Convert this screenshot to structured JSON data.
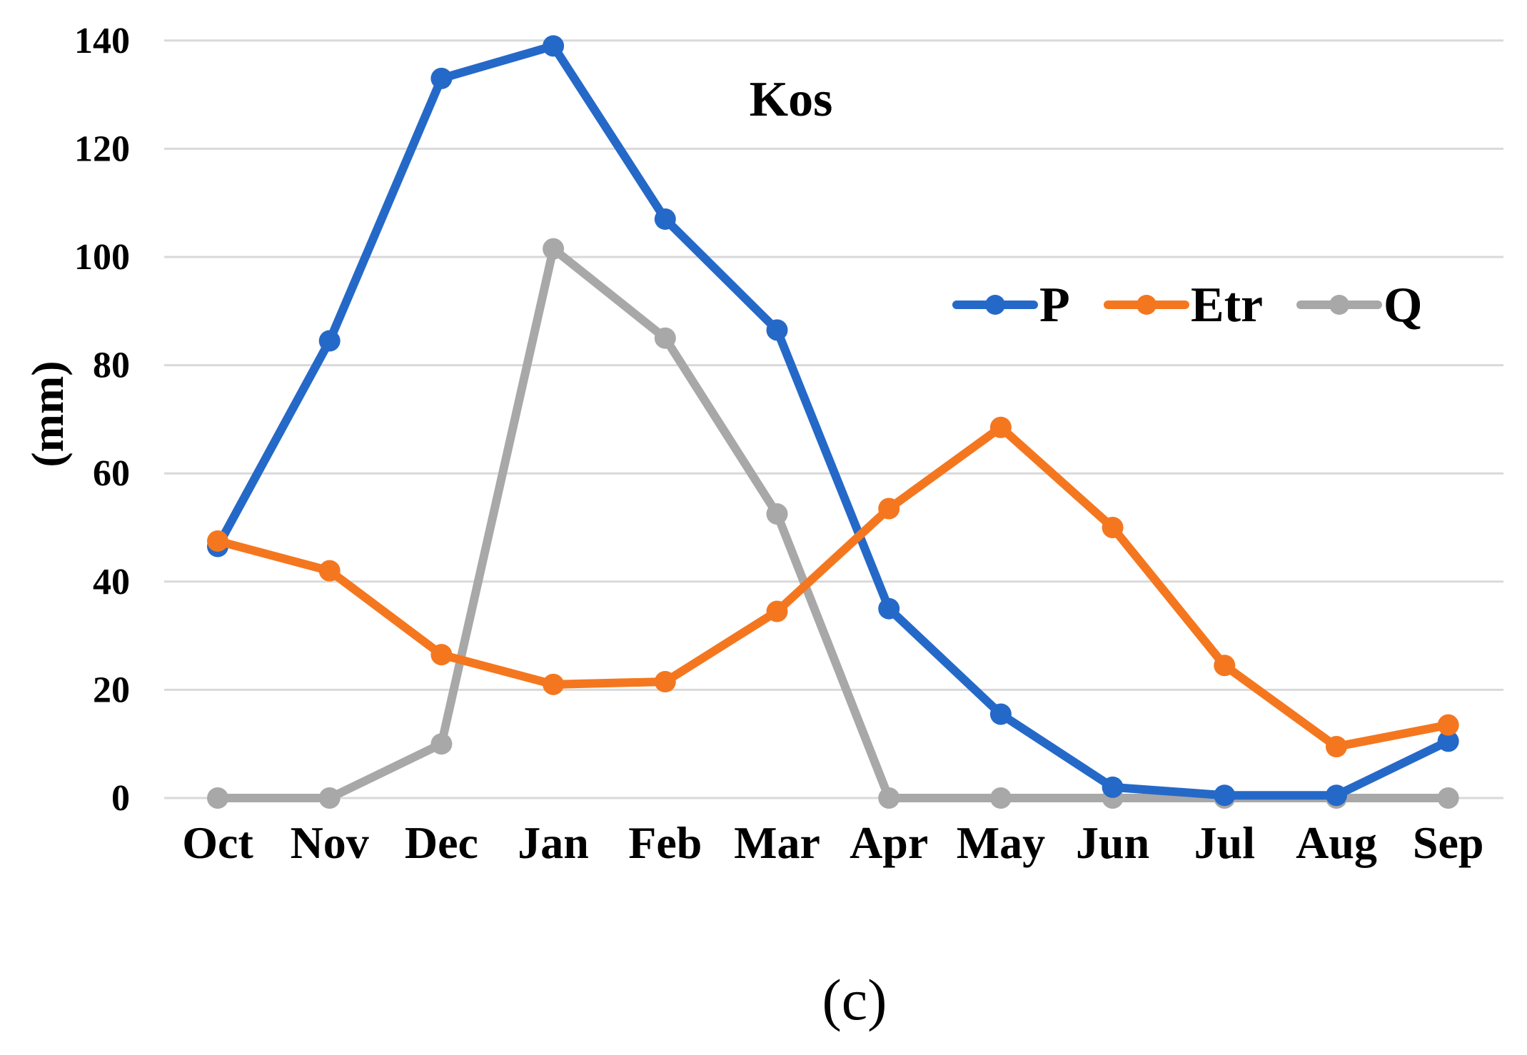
{
  "figure": {
    "background": "#ffffff",
    "caption": "(c)"
  },
  "chart_data": {
    "type": "line",
    "title": "Kos",
    "xlabel": "",
    "ylabel": "(mm)",
    "caption": "(c)",
    "categories": [
      "Oct",
      "Nov",
      "Dec",
      "Jan",
      "Feb",
      "Mar",
      "Apr",
      "May",
      "Jun",
      "Jul",
      "Aug",
      "Sep"
    ],
    "y_ticks": [
      0,
      20,
      40,
      60,
      80,
      100,
      120,
      140
    ],
    "ylim": [
      0,
      140
    ],
    "grid": true,
    "legend_position": "inside-top-right",
    "series": [
      {
        "name": "P",
        "color": "#2569C8",
        "values": [
          46.5,
          84.5,
          133,
          139,
          107,
          86.5,
          35,
          15.5,
          2,
          0.5,
          0.5,
          10.5
        ]
      },
      {
        "name": "Etr",
        "color": "#F4771F",
        "values": [
          47.5,
          42,
          26.5,
          21,
          21.5,
          34.5,
          53.5,
          68.5,
          50,
          24.5,
          9.5,
          13.5
        ]
      },
      {
        "name": "Q",
        "color": "#A8A8A8",
        "values": [
          0,
          0,
          10,
          101.5,
          85,
          52.5,
          0,
          0,
          0,
          0,
          0,
          0
        ]
      }
    ],
    "colors": {
      "gridline": "#D9D9D9",
      "text": "#000000"
    }
  }
}
